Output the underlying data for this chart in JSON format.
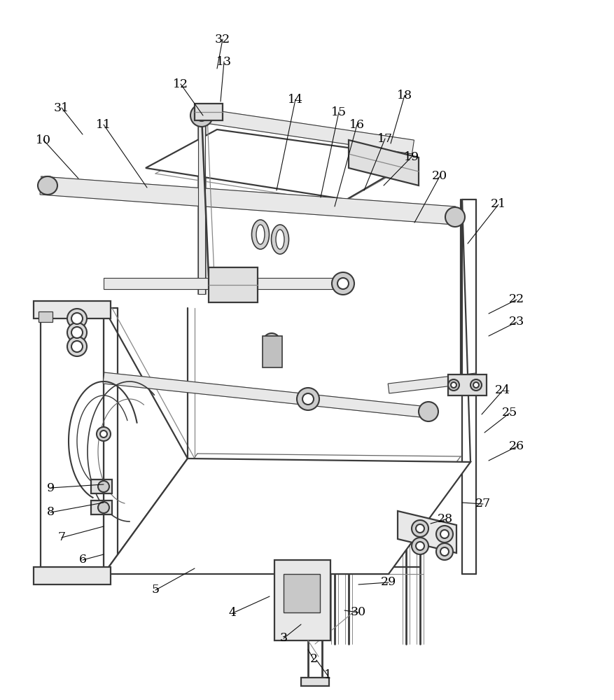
{
  "bg_color": "#ffffff",
  "line_color": "#3a3a3a",
  "label_color": "#000000",
  "label_fontsize": 12.5,
  "lw_main": 1.6,
  "lw_thin": 0.9,
  "lw_tube": 3.5,
  "labels": [
    [
      "1",
      468,
      965
    ],
    [
      "2",
      448,
      942
    ],
    [
      "3",
      405,
      912
    ],
    [
      "4",
      332,
      876
    ],
    [
      "5",
      222,
      843
    ],
    [
      "6",
      118,
      800
    ],
    [
      "7",
      88,
      768
    ],
    [
      "8",
      72,
      732
    ],
    [
      "9",
      72,
      697
    ],
    [
      "10",
      62,
      200
    ],
    [
      "11",
      148,
      178
    ],
    [
      "12",
      258,
      120
    ],
    [
      "13",
      320,
      88
    ],
    [
      "14",
      422,
      142
    ],
    [
      "15",
      484,
      160
    ],
    [
      "16",
      510,
      178
    ],
    [
      "17",
      550,
      198
    ],
    [
      "18",
      578,
      136
    ],
    [
      "19",
      588,
      224
    ],
    [
      "20",
      628,
      252
    ],
    [
      "21",
      712,
      292
    ],
    [
      "22",
      738,
      428
    ],
    [
      "23",
      738,
      460
    ],
    [
      "24",
      718,
      558
    ],
    [
      "25",
      728,
      590
    ],
    [
      "26",
      738,
      638
    ],
    [
      "27",
      690,
      720
    ],
    [
      "28",
      636,
      742
    ],
    [
      "29",
      555,
      832
    ],
    [
      "30",
      512,
      875
    ],
    [
      "31",
      88,
      154
    ],
    [
      "32",
      318,
      56
    ]
  ],
  "leader_lines": [
    [
      "1",
      468,
      965,
      452,
      943
    ],
    [
      "2",
      448,
      942,
      440,
      928
    ],
    [
      "3",
      405,
      912,
      430,
      892
    ],
    [
      "4",
      332,
      876,
      385,
      852
    ],
    [
      "5",
      222,
      843,
      278,
      812
    ],
    [
      "6",
      118,
      800,
      148,
      792
    ],
    [
      "7",
      88,
      768,
      148,
      752
    ],
    [
      "8",
      72,
      732,
      148,
      718
    ],
    [
      "9",
      72,
      697,
      148,
      692
    ],
    [
      "10",
      62,
      200,
      112,
      255
    ],
    [
      "11",
      148,
      178,
      210,
      268
    ],
    [
      "12",
      258,
      120,
      290,
      165
    ],
    [
      "13",
      320,
      88,
      315,
      145
    ],
    [
      "14",
      422,
      142,
      395,
      272
    ],
    [
      "15",
      484,
      160,
      458,
      282
    ],
    [
      "16",
      510,
      178,
      478,
      295
    ],
    [
      "17",
      550,
      198,
      520,
      272
    ],
    [
      "18",
      578,
      136,
      558,
      205
    ],
    [
      "19",
      588,
      224,
      548,
      265
    ],
    [
      "20",
      628,
      252,
      592,
      318
    ],
    [
      "21",
      712,
      292,
      668,
      348
    ],
    [
      "22",
      738,
      428,
      698,
      448
    ],
    [
      "23",
      738,
      460,
      698,
      480
    ],
    [
      "24",
      718,
      558,
      688,
      592
    ],
    [
      "25",
      728,
      590,
      692,
      618
    ],
    [
      "26",
      738,
      638,
      698,
      658
    ],
    [
      "27",
      690,
      720,
      660,
      718
    ],
    [
      "28",
      636,
      742,
      615,
      748
    ],
    [
      "29",
      555,
      832,
      512,
      835
    ],
    [
      "30",
      512,
      875,
      492,
      872
    ],
    [
      "31",
      88,
      154,
      118,
      192
    ],
    [
      "32",
      318,
      56,
      310,
      98
    ]
  ]
}
